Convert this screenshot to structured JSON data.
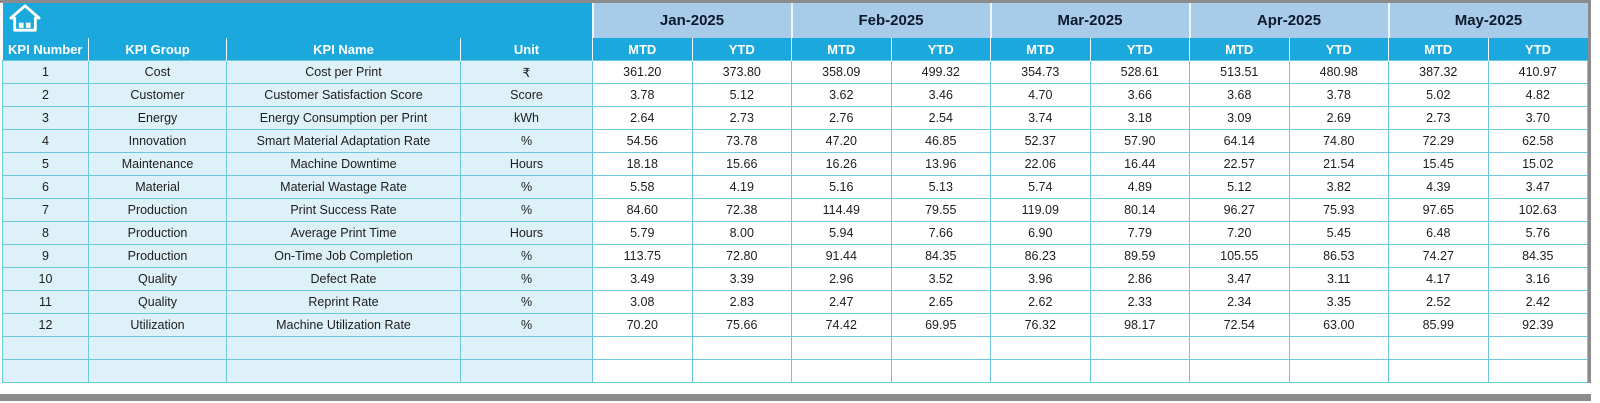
{
  "table": {
    "corner": {
      "icon": "home-icon"
    },
    "header": {
      "left": [
        "KPI Number",
        "KPI Group",
        "KPI Name",
        "Unit"
      ],
      "months": [
        "Jan-2025",
        "Feb-2025",
        "Mar-2025",
        "Apr-2025",
        "May-2025"
      ],
      "sub": [
        "MTD",
        "YTD"
      ]
    },
    "rows": [
      {
        "number": "1",
        "group": "Cost",
        "name": "Cost per Print",
        "unit": "₹",
        "values": [
          "361.20",
          "373.80",
          "358.09",
          "499.32",
          "354.73",
          "528.61",
          "513.51",
          "480.98",
          "387.32",
          "410.97"
        ]
      },
      {
        "number": "2",
        "group": "Customer",
        "name": "Customer Satisfaction Score",
        "unit": "Score",
        "values": [
          "3.78",
          "5.12",
          "3.62",
          "3.46",
          "4.70",
          "3.66",
          "3.68",
          "3.78",
          "5.02",
          "4.82"
        ]
      },
      {
        "number": "3",
        "group": "Energy",
        "name": "Energy Consumption per Print",
        "unit": "kWh",
        "values": [
          "2.64",
          "2.73",
          "2.76",
          "2.54",
          "3.74",
          "3.18",
          "3.09",
          "2.69",
          "2.73",
          "3.70"
        ]
      },
      {
        "number": "4",
        "group": "Innovation",
        "name": "Smart Material Adaptation Rate",
        "unit": "%",
        "values": [
          "54.56",
          "73.78",
          "47.20",
          "46.85",
          "52.37",
          "57.90",
          "64.14",
          "74.80",
          "72.29",
          "62.58"
        ]
      },
      {
        "number": "5",
        "group": "Maintenance",
        "name": "Machine Downtime",
        "unit": "Hours",
        "values": [
          "18.18",
          "15.66",
          "16.26",
          "13.96",
          "22.06",
          "16.44",
          "22.57",
          "21.54",
          "15.45",
          "15.02"
        ]
      },
      {
        "number": "6",
        "group": "Material",
        "name": "Material Wastage Rate",
        "unit": "%",
        "values": [
          "5.58",
          "4.19",
          "5.16",
          "5.13",
          "5.74",
          "4.89",
          "5.12",
          "3.82",
          "4.39",
          "3.47"
        ]
      },
      {
        "number": "7",
        "group": "Production",
        "name": "Print Success Rate",
        "unit": "%",
        "values": [
          "84.60",
          "72.38",
          "114.49",
          "79.55",
          "119.09",
          "80.14",
          "96.27",
          "75.93",
          "97.65",
          "102.63"
        ]
      },
      {
        "number": "8",
        "group": "Production",
        "name": "Average Print Time",
        "unit": "Hours",
        "values": [
          "5.79",
          "8.00",
          "5.94",
          "7.66",
          "6.90",
          "7.79",
          "7.20",
          "5.45",
          "6.48",
          "5.76"
        ]
      },
      {
        "number": "9",
        "group": "Production",
        "name": "On-Time Job Completion",
        "unit": "%",
        "values": [
          "113.75",
          "72.80",
          "91.44",
          "84.35",
          "86.23",
          "89.59",
          "105.55",
          "86.53",
          "74.27",
          "84.35"
        ]
      },
      {
        "number": "10",
        "group": "Quality",
        "name": "Defect Rate",
        "unit": "%",
        "values": [
          "3.49",
          "3.39",
          "2.96",
          "3.52",
          "3.96",
          "2.86",
          "3.47",
          "3.11",
          "4.17",
          "3.16"
        ]
      },
      {
        "number": "11",
        "group": "Quality",
        "name": "Reprint Rate",
        "unit": "%",
        "values": [
          "3.08",
          "2.83",
          "2.47",
          "2.65",
          "2.62",
          "2.33",
          "2.34",
          "3.35",
          "2.52",
          "2.42"
        ]
      },
      {
        "number": "12",
        "group": "Utilization",
        "name": "Machine Utilization Rate",
        "unit": "%",
        "values": [
          "70.20",
          "75.66",
          "74.42",
          "69.95",
          "76.32",
          "98.17",
          "72.54",
          "63.00",
          "85.99",
          "92.39"
        ]
      }
    ],
    "empty_rows": 2
  },
  "colors": {
    "header_cyan": "#1BA8DC",
    "month_band": "#A9CBEA",
    "month_text": "#0E1A2B",
    "left_cell": "#DEF0F8",
    "grid_line": "#6CC8DD",
    "border_gray": "#8C8C8C"
  }
}
